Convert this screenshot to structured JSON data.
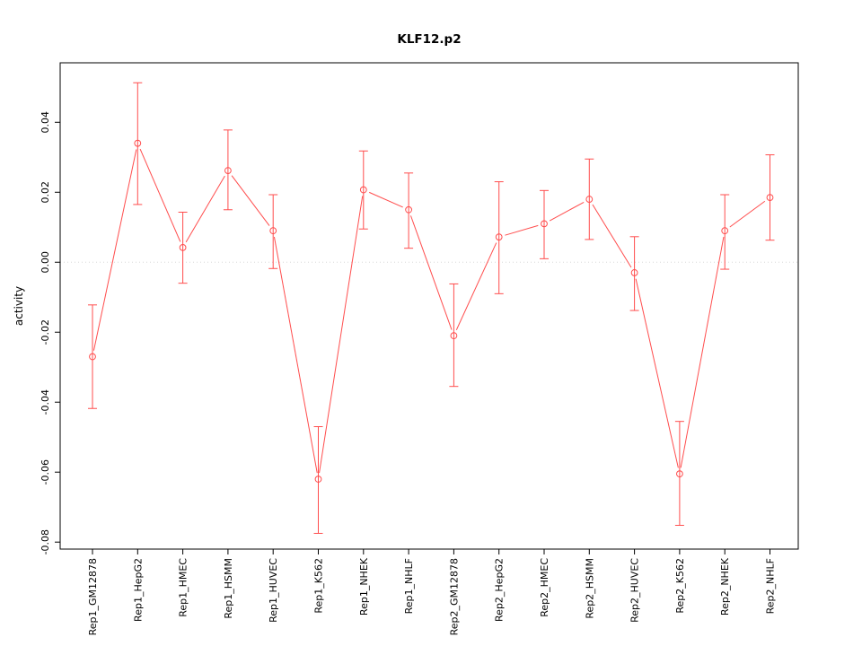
{
  "figure": {
    "background": "#ffffff",
    "axis_color": "#000000",
    "ref_line_color": "#d8d8d8"
  },
  "chart_data": {
    "type": "line",
    "title": "KLF12.p2",
    "xlabel": "",
    "ylabel": "activity",
    "grid": false,
    "legend": false,
    "reference_line": 0,
    "ylim": [
      -0.082,
      0.057
    ],
    "yticks": [
      -0.08,
      -0.06,
      -0.04,
      -0.02,
      0.0,
      0.02,
      0.04
    ],
    "ytick_labels": [
      "-0.08",
      "-0.06",
      "-0.04",
      "-0.02",
      "0.00",
      "0.02",
      "0.04"
    ],
    "categories": [
      "Rep1_GM12878",
      "Rep1_HepG2",
      "Rep1_HMEC",
      "Rep1_HSMM",
      "Rep1_HUVEC",
      "Rep1_K562",
      "Rep1_NHEK",
      "Rep1_NHLF",
      "Rep2_GM12878",
      "Rep2_HepG2",
      "Rep2_HMEC",
      "Rep2_HSMM",
      "Rep2_HUVEC",
      "Rep2_K562",
      "Rep2_NHEK",
      "Rep2_NHLF"
    ],
    "series": [
      {
        "name": "activity",
        "color": "#ff4d4d",
        "marker": "open-circle",
        "values": [
          -0.027,
          0.034,
          0.0042,
          0.0262,
          0.009,
          -0.062,
          0.0207,
          0.015,
          -0.021,
          0.0072,
          0.011,
          0.018,
          -0.003,
          -0.0605,
          0.009,
          0.0185
        ],
        "ci_low": [
          -0.0418,
          0.0165,
          -0.006,
          0.015,
          -0.0018,
          -0.0775,
          0.0095,
          0.004,
          -0.0355,
          -0.009,
          0.001,
          0.0065,
          -0.0138,
          -0.0752,
          -0.002,
          0.0063
        ],
        "ci_high": [
          -0.0122,
          0.0513,
          0.0143,
          0.0378,
          0.0193,
          -0.047,
          0.0318,
          0.0255,
          -0.0062,
          0.023,
          0.0205,
          0.0295,
          0.0073,
          -0.0455,
          0.0193,
          0.0307
        ]
      }
    ]
  }
}
